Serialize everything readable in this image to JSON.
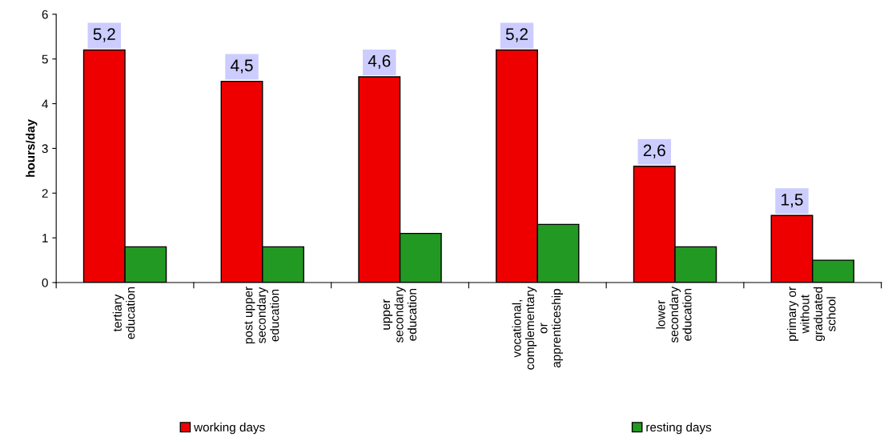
{
  "chart_data": {
    "type": "bar",
    "ylabel": "hours/day",
    "categories": [
      "tertiary\neducation",
      "post upper\nsecondary\neducation",
      "upper\nsecondary\neducation",
      "vocational,\ncomplementary\nor\napprenticeship",
      "lower\nsecondary\neducation",
      "primary or\nwithout\ngraduated\nschool"
    ],
    "series": [
      {
        "name": "working days",
        "color": "#ee0000",
        "values": [
          5.2,
          4.5,
          4.6,
          5.2,
          2.6,
          1.5
        ],
        "value_labels": [
          "5,2",
          "4,5",
          "4,6",
          "5,2",
          "2,6",
          "1,5"
        ]
      },
      {
        "name": "resting days",
        "color": "#229922",
        "values": [
          0.8,
          0.8,
          1.1,
          1.3,
          0.8,
          0.5
        ]
      }
    ],
    "ylim": [
      0,
      6
    ],
    "yticks": [
      0,
      1,
      2,
      3,
      4,
      5,
      6
    ],
    "grid": false,
    "legend": "bottom"
  }
}
